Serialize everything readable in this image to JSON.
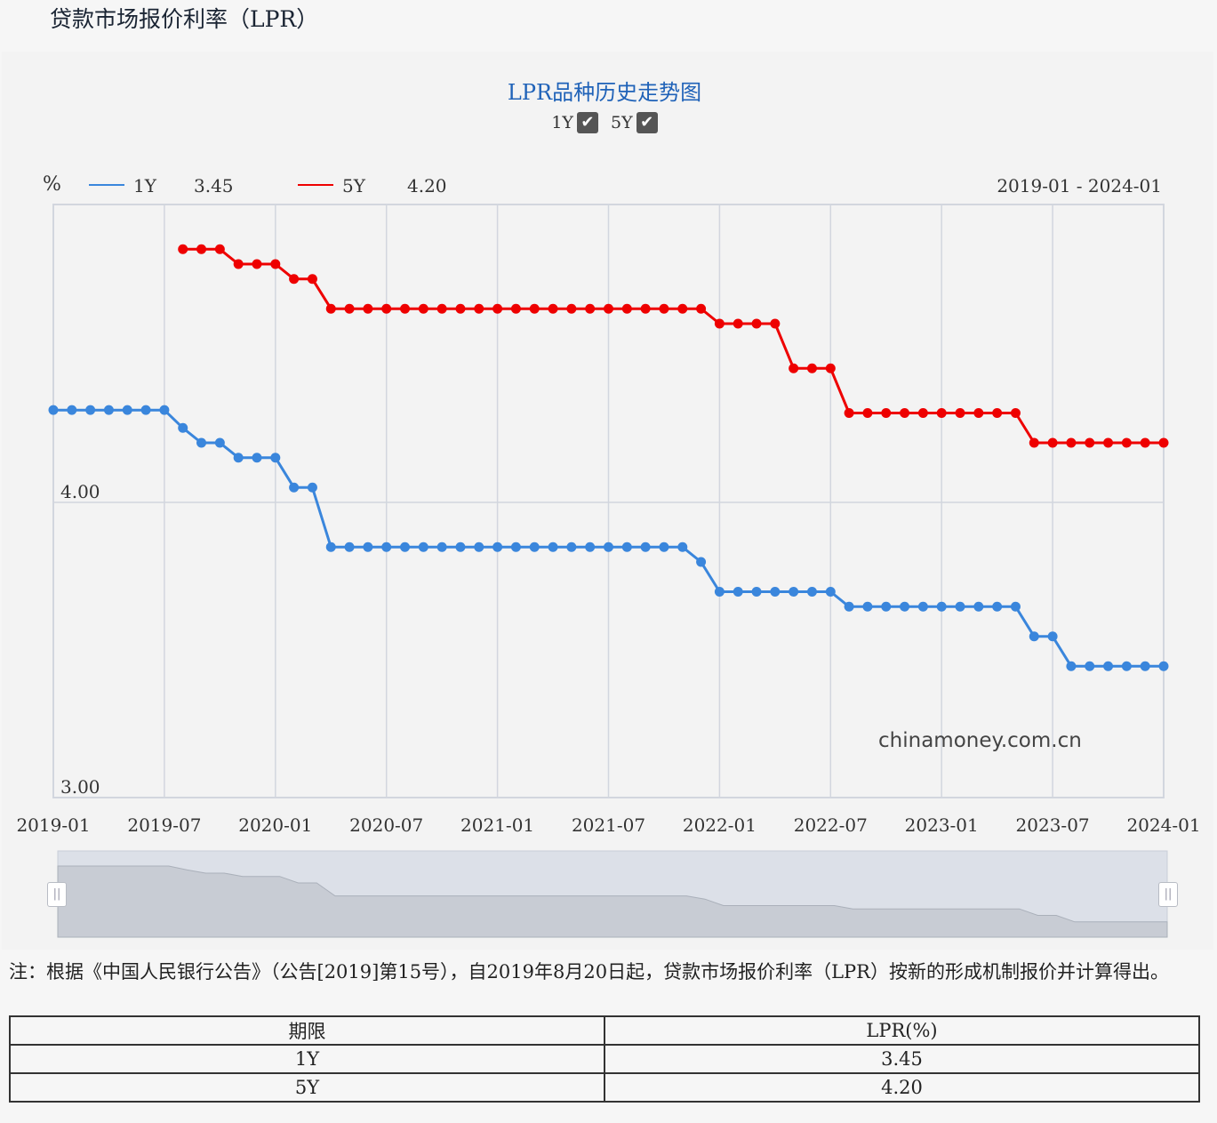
{
  "page_title": "贷款市场报价利率（LPR）",
  "toggles": [
    {
      "label": "1Y",
      "checked": true
    },
    {
      "label": "5Y",
      "checked": true
    }
  ],
  "checkbox_glyph": "✔",
  "legend": {
    "unit": "%",
    "items": [
      {
        "name": "1Y",
        "value": "3.45",
        "color": "#3a86dc"
      },
      {
        "name": "5Y",
        "value": "4.20",
        "color": "#ee0000"
      }
    ],
    "range": "2019-01 - 2024-01"
  },
  "watermark": "chinamoney.com.cn",
  "handle_glyph": "||",
  "chart_data": {
    "type": "line",
    "title": "LPR品种历史走势图",
    "x_tick_labels": [
      "2019-01",
      "2019-07",
      "2020-01",
      "2020-07",
      "2021-01",
      "2021-07",
      "2022-01",
      "2022-07",
      "2023-01",
      "2023-07",
      "2024-01"
    ],
    "y_tick_labels": [
      "3.00",
      "4.00"
    ],
    "ylim": [
      3.0,
      5.0
    ],
    "xlim": [
      "2019-01",
      "2024-01"
    ],
    "grid": true,
    "series": [
      {
        "name": "1Y",
        "color": "#3a86dc",
        "points": [
          [
            "2019-01",
            4.31
          ],
          [
            "2019-02",
            4.31
          ],
          [
            "2019-03",
            4.31
          ],
          [
            "2019-04",
            4.31
          ],
          [
            "2019-05",
            4.31
          ],
          [
            "2019-06",
            4.31
          ],
          [
            "2019-07",
            4.31
          ],
          [
            "2019-08",
            4.25
          ],
          [
            "2019-09",
            4.2
          ],
          [
            "2019-10",
            4.2
          ],
          [
            "2019-11",
            4.15
          ],
          [
            "2019-12",
            4.15
          ],
          [
            "2020-01",
            4.15
          ],
          [
            "2020-02",
            4.05
          ],
          [
            "2020-03",
            4.05
          ],
          [
            "2020-04",
            3.85
          ],
          [
            "2020-05",
            3.85
          ],
          [
            "2020-06",
            3.85
          ],
          [
            "2020-07",
            3.85
          ],
          [
            "2020-08",
            3.85
          ],
          [
            "2020-09",
            3.85
          ],
          [
            "2020-10",
            3.85
          ],
          [
            "2020-11",
            3.85
          ],
          [
            "2020-12",
            3.85
          ],
          [
            "2021-01",
            3.85
          ],
          [
            "2021-02",
            3.85
          ],
          [
            "2021-03",
            3.85
          ],
          [
            "2021-04",
            3.85
          ],
          [
            "2021-05",
            3.85
          ],
          [
            "2021-06",
            3.85
          ],
          [
            "2021-07",
            3.85
          ],
          [
            "2021-08",
            3.85
          ],
          [
            "2021-09",
            3.85
          ],
          [
            "2021-10",
            3.85
          ],
          [
            "2021-11",
            3.85
          ],
          [
            "2021-12",
            3.8
          ],
          [
            "2022-01",
            3.7
          ],
          [
            "2022-02",
            3.7
          ],
          [
            "2022-03",
            3.7
          ],
          [
            "2022-04",
            3.7
          ],
          [
            "2022-05",
            3.7
          ],
          [
            "2022-06",
            3.7
          ],
          [
            "2022-07",
            3.7
          ],
          [
            "2022-08",
            3.65
          ],
          [
            "2022-09",
            3.65
          ],
          [
            "2022-10",
            3.65
          ],
          [
            "2022-11",
            3.65
          ],
          [
            "2022-12",
            3.65
          ],
          [
            "2023-01",
            3.65
          ],
          [
            "2023-02",
            3.65
          ],
          [
            "2023-03",
            3.65
          ],
          [
            "2023-04",
            3.65
          ],
          [
            "2023-05",
            3.65
          ],
          [
            "2023-06",
            3.55
          ],
          [
            "2023-07",
            3.55
          ],
          [
            "2023-08",
            3.45
          ],
          [
            "2023-09",
            3.45
          ],
          [
            "2023-10",
            3.45
          ],
          [
            "2023-11",
            3.45
          ],
          [
            "2023-12",
            3.45
          ],
          [
            "2024-01",
            3.45
          ]
        ]
      },
      {
        "name": "5Y",
        "color": "#ee0000",
        "points": [
          [
            "2019-08",
            4.85
          ],
          [
            "2019-09",
            4.85
          ],
          [
            "2019-10",
            4.85
          ],
          [
            "2019-11",
            4.8
          ],
          [
            "2019-12",
            4.8
          ],
          [
            "2020-01",
            4.8
          ],
          [
            "2020-02",
            4.75
          ],
          [
            "2020-03",
            4.75
          ],
          [
            "2020-04",
            4.65
          ],
          [
            "2020-05",
            4.65
          ],
          [
            "2020-06",
            4.65
          ],
          [
            "2020-07",
            4.65
          ],
          [
            "2020-08",
            4.65
          ],
          [
            "2020-09",
            4.65
          ],
          [
            "2020-10",
            4.65
          ],
          [
            "2020-11",
            4.65
          ],
          [
            "2020-12",
            4.65
          ],
          [
            "2021-01",
            4.65
          ],
          [
            "2021-02",
            4.65
          ],
          [
            "2021-03",
            4.65
          ],
          [
            "2021-04",
            4.65
          ],
          [
            "2021-05",
            4.65
          ],
          [
            "2021-06",
            4.65
          ],
          [
            "2021-07",
            4.65
          ],
          [
            "2021-08",
            4.65
          ],
          [
            "2021-09",
            4.65
          ],
          [
            "2021-10",
            4.65
          ],
          [
            "2021-11",
            4.65
          ],
          [
            "2021-12",
            4.65
          ],
          [
            "2022-01",
            4.6
          ],
          [
            "2022-02",
            4.6
          ],
          [
            "2022-03",
            4.6
          ],
          [
            "2022-04",
            4.6
          ],
          [
            "2022-05",
            4.45
          ],
          [
            "2022-06",
            4.45
          ],
          [
            "2022-07",
            4.45
          ],
          [
            "2022-08",
            4.3
          ],
          [
            "2022-09",
            4.3
          ],
          [
            "2022-10",
            4.3
          ],
          [
            "2022-11",
            4.3
          ],
          [
            "2022-12",
            4.3
          ],
          [
            "2023-01",
            4.3
          ],
          [
            "2023-02",
            4.3
          ],
          [
            "2023-03",
            4.3
          ],
          [
            "2023-04",
            4.3
          ],
          [
            "2023-05",
            4.3
          ],
          [
            "2023-06",
            4.2
          ],
          [
            "2023-07",
            4.2
          ],
          [
            "2023-08",
            4.2
          ],
          [
            "2023-09",
            4.2
          ],
          [
            "2023-10",
            4.2
          ],
          [
            "2023-11",
            4.2
          ],
          [
            "2023-12",
            4.2
          ],
          [
            "2024-01",
            4.2
          ]
        ]
      }
    ]
  },
  "note": "注：根据《中国人民银行公告》（公告[2019]第15号），自2019年8月20日起，贷款市场报价利率（LPR）按新的形成机制报价并计算得出。",
  "table": {
    "headers": [
      "期限",
      "LPR(%)"
    ],
    "rows": [
      [
        "1Y",
        "3.45"
      ],
      [
        "5Y",
        "4.20"
      ]
    ]
  }
}
